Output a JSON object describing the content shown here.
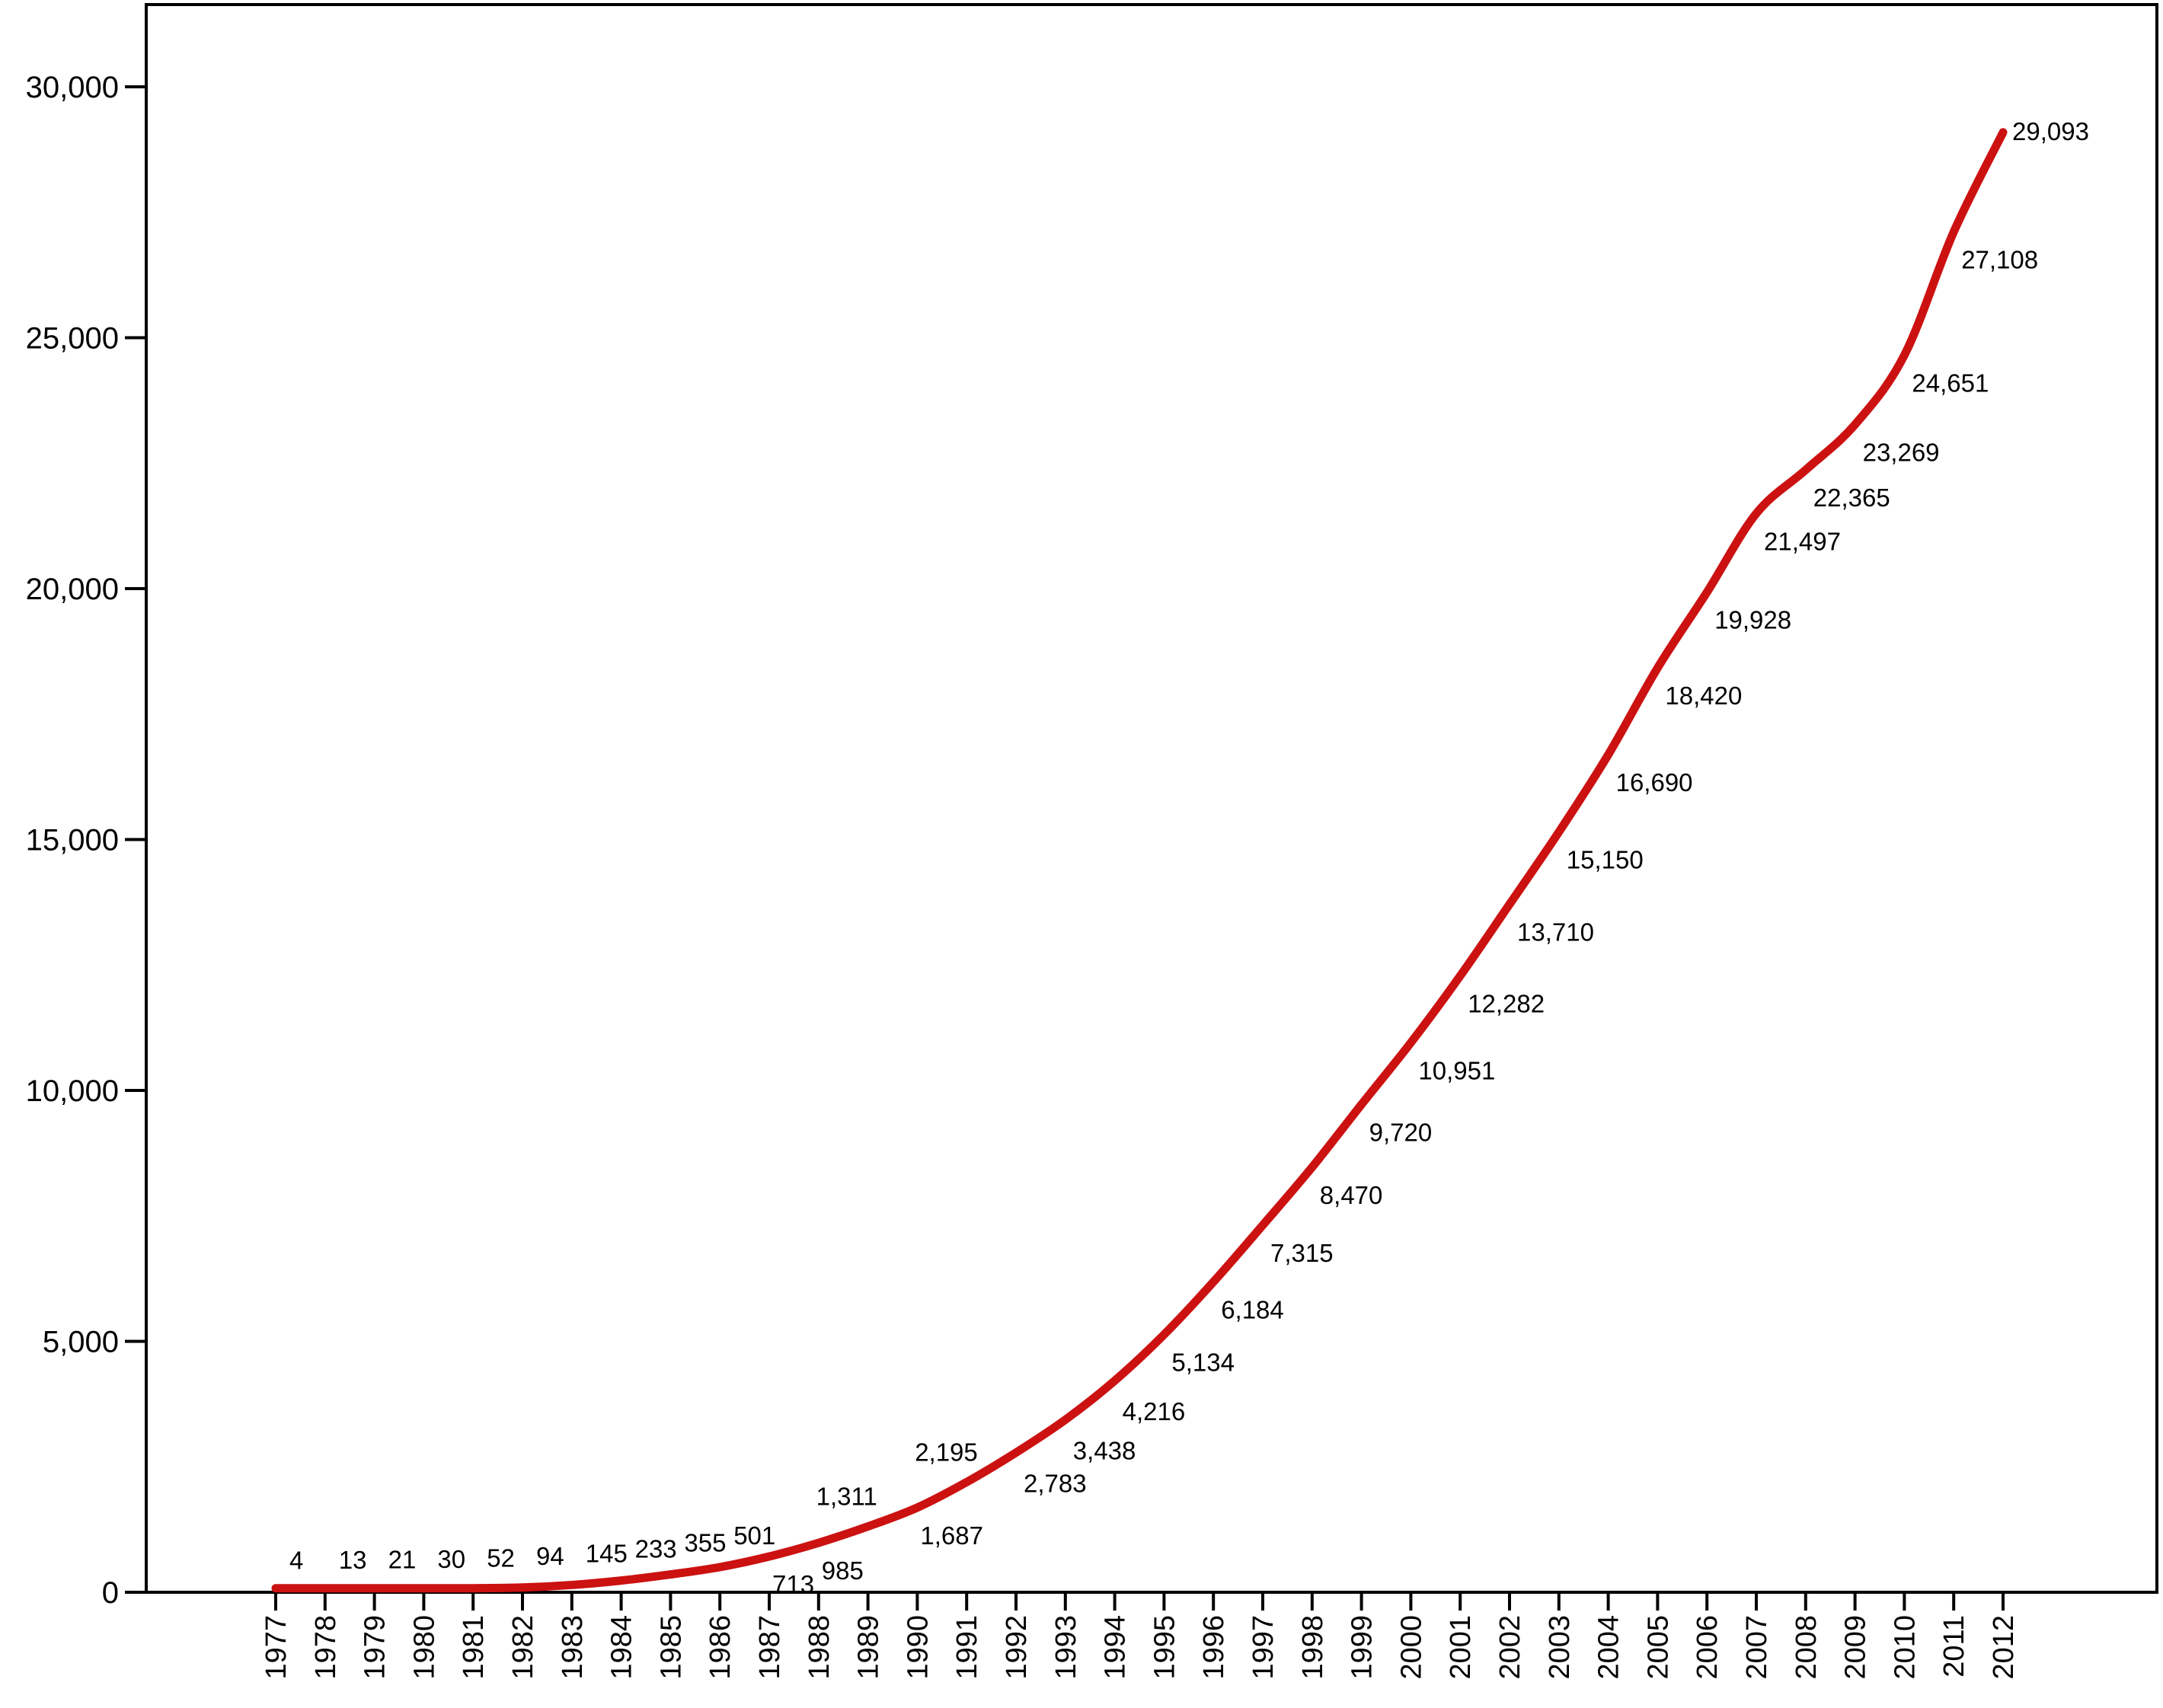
{
  "chart_data": {
    "type": "line",
    "title": "",
    "xlabel": "",
    "ylabel": "",
    "ylim": [
      0,
      32000
    ],
    "y_ticks": [
      0,
      5000,
      10000,
      15000,
      20000,
      25000,
      30000
    ],
    "y_tick_labels": [
      "0",
      "5,000",
      "10,000",
      "15,000",
      "20,000",
      "25,000",
      "30,000"
    ],
    "grid": false,
    "legend": "none",
    "line_color": "#cc1111",
    "x": [
      "1977",
      "1978",
      "1979",
      "1980",
      "1981",
      "1982",
      "1983",
      "1984",
      "1985",
      "1986",
      "1987",
      "1988",
      "1989",
      "1990",
      "1991",
      "1992",
      "1993",
      "1994",
      "1995",
      "1996",
      "1997",
      "1998",
      "1999",
      "2000",
      "2001",
      "2002",
      "2003",
      "2004",
      "2005",
      "2006",
      "2007",
      "2008",
      "2009",
      "2010",
      "2011",
      "2012"
    ],
    "values": [
      4,
      13,
      21,
      30,
      52,
      94,
      145,
      233,
      355,
      501,
      713,
      985,
      1311,
      1687,
      2195,
      2783,
      3438,
      4216,
      5134,
      6184,
      7315,
      8470,
      9720,
      10951,
      12282,
      13710,
      15150,
      16690,
      18420,
      19928,
      21497,
      22365,
      23269,
      24651,
      27108,
      29093
    ],
    "data_labels": [
      "4",
      "13",
      "21",
      "30",
      "52",
      "94",
      "145",
      "233",
      "355",
      "501",
      "713",
      "985",
      "1,311",
      "1,687",
      "2,195",
      "2,783",
      "3,438",
      "4,216",
      "5,134",
      "6,184",
      "7,315",
      "8,470",
      "9,720",
      "10,951",
      "12,282",
      "13,710",
      "15,150",
      "16,690",
      "18,420",
      "19,928",
      "21,497",
      "22,365",
      "23,269",
      "24,651",
      "27,108",
      "29,093"
    ]
  }
}
